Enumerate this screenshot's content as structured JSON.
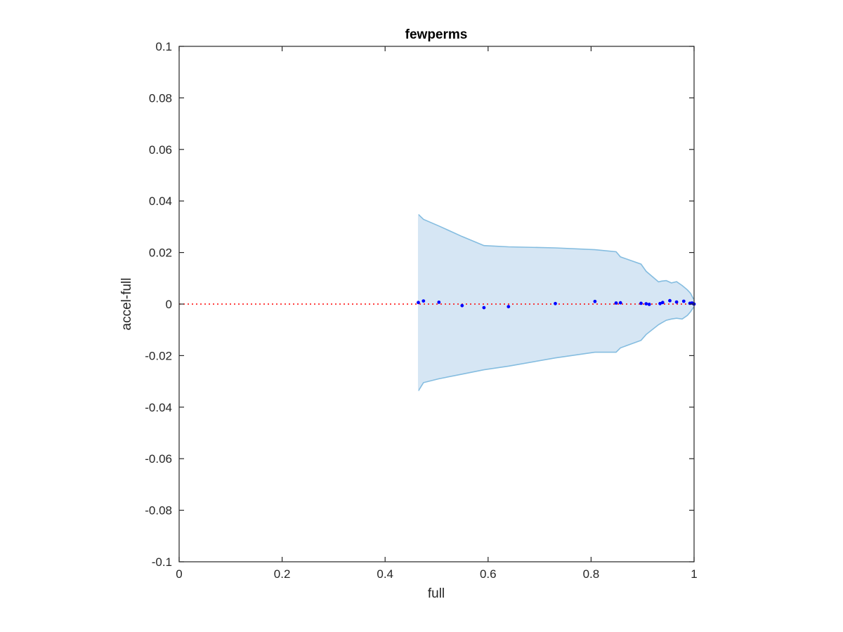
{
  "chart_data": {
    "type": "scatter",
    "title": "fewperms",
    "xlabel": "full",
    "ylabel": "accel-full",
    "xlim": [
      0,
      1
    ],
    "ylim": [
      -0.1,
      0.1
    ],
    "xticks": [
      0,
      0.2,
      0.4,
      0.6,
      0.8,
      1
    ],
    "xtick_labels": [
      "0",
      "0.2",
      "0.4",
      "0.6",
      "0.8",
      "1"
    ],
    "yticks": [
      -0.1,
      -0.08,
      -0.06,
      -0.04,
      -0.02,
      0,
      0.02,
      0.04,
      0.06,
      0.08,
      0.1
    ],
    "ytick_labels": [
      "-0.1",
      "-0.08",
      "-0.06",
      "-0.04",
      "-0.02",
      "0",
      "0.02",
      "0.04",
      "0.06",
      "0.08",
      "0.1"
    ],
    "grid": false,
    "reference_line": {
      "y": 0,
      "style": "dotted",
      "color": "#ff0000"
    },
    "band": {
      "fill": "#d6e6f4",
      "stroke": "#85bde0",
      "upper": [
        [
          0.4645,
          0.0348
        ],
        [
          0.4745,
          0.0329
        ],
        [
          0.5045,
          0.0303
        ],
        [
          0.5495,
          0.0262
        ],
        [
          0.592,
          0.0227
        ],
        [
          0.6395,
          0.0222
        ],
        [
          0.7305,
          0.0218
        ],
        [
          0.8075,
          0.0211
        ],
        [
          0.8485,
          0.0203
        ],
        [
          0.857,
          0.0183
        ],
        [
          0.897,
          0.0155
        ],
        [
          0.907,
          0.0127
        ],
        [
          0.931,
          0.0086
        ],
        [
          0.937,
          0.0089
        ],
        [
          0.946,
          0.0091
        ],
        [
          0.956,
          0.0082
        ],
        [
          0.966,
          0.0087
        ],
        [
          0.977,
          0.0072
        ],
        [
          0.987,
          0.0055
        ],
        [
          0.993,
          0.0042
        ],
        [
          0.999,
          0.0019
        ]
      ],
      "lower": [
        [
          0.4645,
          -0.0337
        ],
        [
          0.4745,
          -0.0305
        ],
        [
          0.5045,
          -0.029
        ],
        [
          0.5495,
          -0.0272
        ],
        [
          0.592,
          -0.0255
        ],
        [
          0.6395,
          -0.0241
        ],
        [
          0.7305,
          -0.0209
        ],
        [
          0.8075,
          -0.0187
        ],
        [
          0.8485,
          -0.0187
        ],
        [
          0.857,
          -0.017
        ],
        [
          0.897,
          -0.0141
        ],
        [
          0.907,
          -0.0118
        ],
        [
          0.931,
          -0.008
        ],
        [
          0.937,
          -0.0073
        ],
        [
          0.946,
          -0.0063
        ],
        [
          0.956,
          -0.0058
        ],
        [
          0.966,
          -0.0055
        ],
        [
          0.977,
          -0.0058
        ],
        [
          0.987,
          -0.0044
        ],
        [
          0.993,
          -0.003
        ],
        [
          0.999,
          -0.0012
        ]
      ]
    },
    "series": [
      {
        "color": "#0000ff",
        "points": [
          [
            0.4645,
            0.0006
          ],
          [
            0.4745,
            0.0012
          ],
          [
            0.5045,
            0.0007
          ],
          [
            0.5495,
            -0.0006
          ],
          [
            0.592,
            -0.0014
          ],
          [
            0.6395,
            -0.001
          ],
          [
            0.7305,
            0.0002
          ],
          [
            0.8075,
            0.001
          ],
          [
            0.8485,
            0.0004
          ],
          [
            0.857,
            0.0005
          ],
          [
            0.897,
            0.0003
          ],
          [
            0.907,
            0.0001
          ],
          [
            0.913,
            -0.0001
          ],
          [
            0.934,
            0.0002
          ],
          [
            0.939,
            0.0006
          ],
          [
            0.953,
            0.0013
          ],
          [
            0.966,
            0.0008
          ],
          [
            0.98,
            0.0011
          ],
          [
            0.992,
            0.0003
          ],
          [
            0.996,
            0.0004
          ],
          [
            0.999,
            0.0001
          ],
          [
            1.0,
            0.0
          ]
        ]
      }
    ]
  }
}
